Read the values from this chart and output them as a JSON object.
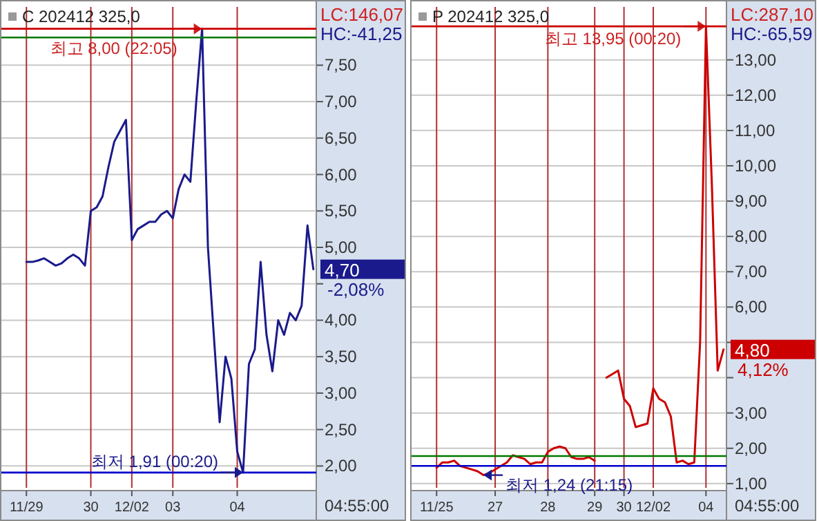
{
  "chart_data": [
    {
      "type": "line",
      "title": "C 202412 325,0",
      "grid": true,
      "line_style": "solid",
      "marker": "none",
      "ylim": [
        1.7,
        8.3
      ],
      "categories": [
        "11/29",
        null,
        null,
        null,
        null,
        null,
        null,
        null,
        null,
        null,
        null,
        "30",
        null,
        null,
        null,
        null,
        null,
        null,
        "12/02",
        null,
        null,
        null,
        null,
        null,
        null,
        "03",
        null,
        null,
        null,
        null,
        null,
        null,
        null,
        null,
        null,
        null,
        "04",
        null,
        null,
        null,
        null,
        null,
        null,
        null,
        null,
        null,
        null,
        null,
        null,
        null
      ],
      "yticks": [
        {
          "value": 2,
          "label": "2,00"
        },
        {
          "value": 2.5,
          "label": "2,50"
        },
        {
          "value": 3,
          "label": "3,00"
        },
        {
          "value": 3.5,
          "label": "3,50"
        },
        {
          "value": 4,
          "label": "4,00"
        },
        {
          "value": 4.5,
          "label": null
        },
        {
          "value": 5,
          "label": "5,00"
        },
        {
          "value": 5.5,
          "label": "5,50"
        },
        {
          "value": 6,
          "label": "6,00"
        },
        {
          "value": 6.5,
          "label": "6,50"
        },
        {
          "value": 7,
          "label": "7,00"
        },
        {
          "value": 7.5,
          "label": "7,50"
        }
      ],
      "series": [
        {
          "color": "#1a1a8c",
          "values": [
            4.8,
            4.8,
            4.82,
            4.85,
            4.8,
            4.75,
            4.78,
            4.85,
            4.9,
            4.85,
            4.75,
            5.5,
            5.55,
            5.7,
            6.1,
            6.45,
            6.6,
            6.75,
            5.1,
            5.25,
            5.3,
            5.35,
            5.35,
            5.45,
            5.5,
            5.4,
            5.8,
            6.0,
            5.9,
            7.0,
            8.0,
            5.0,
            3.8,
            2.6,
            3.5,
            3.2,
            2.2,
            1.91,
            3.4,
            3.6,
            4.8,
            3.8,
            3.3,
            4.0,
            3.8,
            4.1,
            4.0,
            4.2,
            5.3,
            4.7
          ]
        }
      ],
      "ref_lines": [
        {
          "axis": "y",
          "value": 8.0,
          "color": "#cc0000"
        },
        {
          "axis": "y",
          "value": 7.88,
          "color": "#007700"
        },
        {
          "axis": "y",
          "value": 1.91,
          "color": "#0000cc"
        }
      ],
      "annotations": [
        {
          "text": "최고 8,00 (22:05)",
          "y": 8.0
        },
        "최저 1,91 (00:20)",
        "LC:146,07",
        "HC:-41,25",
        "4,70",
        "-2,08%",
        "04:55:00"
      ]
    },
    {
      "type": "line",
      "title": "P 202412 325,0",
      "grid": true,
      "line_style": "solid",
      "marker": "none",
      "ylim": [
        0.88,
        14.5
      ],
      "categories": [
        "11/25",
        null,
        null,
        null,
        null,
        null,
        null,
        null,
        null,
        null,
        "27",
        null,
        null,
        null,
        null,
        null,
        null,
        null,
        null,
        "28",
        null,
        null,
        null,
        null,
        null,
        null,
        null,
        "29",
        null,
        null,
        null,
        null,
        "30",
        null,
        null,
        null,
        null,
        "12/02",
        null,
        null,
        null,
        null,
        null,
        null,
        null,
        null,
        "04",
        null,
        null,
        null
      ],
      "yticks": [
        {
          "value": 1,
          "label": "1,00"
        },
        {
          "value": 2,
          "label": "2,00"
        },
        {
          "value": 3,
          "label": "3,00"
        },
        {
          "value": 4,
          "label": null
        },
        {
          "value": 5,
          "label": null
        },
        {
          "value": 6,
          "label": "6,00"
        },
        {
          "value": 7,
          "label": "7,00"
        },
        {
          "value": 8,
          "label": "8,00"
        },
        {
          "value": 9,
          "label": "9,00"
        },
        {
          "value": 10,
          "label": "10,00"
        },
        {
          "value": 11,
          "label": "11,00"
        },
        {
          "value": 12,
          "label": "12,00"
        },
        {
          "value": 13,
          "label": "13,00"
        }
      ],
      "series": [
        {
          "color": "#cc0000",
          "values": [
            1.45,
            1.6,
            1.6,
            1.65,
            1.5,
            1.45,
            1.4,
            1.35,
            1.24,
            1.3,
            1.4,
            1.5,
            1.6,
            1.8,
            1.75,
            1.7,
            1.55,
            1.6,
            1.6,
            1.9,
            2.0,
            2.05,
            2.0,
            1.75,
            1.7,
            1.7,
            1.75,
            1.65,
            null,
            4.0,
            4.1,
            4.2,
            3.4,
            3.2,
            2.6,
            2.65,
            2.7,
            3.7,
            3.4,
            3.3,
            2.9,
            1.6,
            1.65,
            1.55,
            1.6,
            5.0,
            13.95,
            9.5,
            4.2,
            4.8
          ]
        }
      ],
      "ref_lines": [
        {
          "axis": "y",
          "value": 13.95,
          "color": "#cc0000"
        },
        {
          "axis": "y",
          "value": 1.78,
          "color": "#007700"
        },
        {
          "axis": "y",
          "value": 1.5,
          "color": "#0000cc"
        }
      ],
      "annotations": [
        {
          "text": "최고 13,95 (00:20)",
          "y": 13.95
        },
        "최저 1,24 (21:15)",
        "LC:287,10",
        "HC:-65,59",
        "4,80",
        "4,12%",
        "04:55:00"
      ]
    }
  ]
}
